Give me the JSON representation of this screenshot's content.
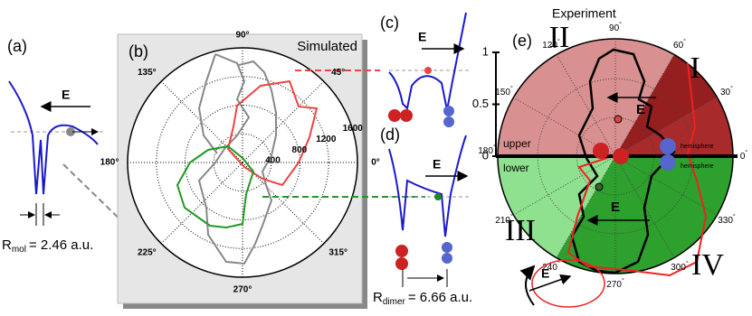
{
  "panel_a": {
    "label": "(a)",
    "field": "E",
    "r_symbol": "R",
    "r_subscript": "mol",
    "r_value": "= 2.46 a.u."
  },
  "panel_b": {
    "label": "(b)",
    "title": "Simulated",
    "angles": [
      "90°",
      "45°",
      "0°",
      "315°",
      "270°",
      "225°",
      "180°",
      "135°"
    ],
    "radii": [
      "400",
      "800",
      "1200",
      "1600"
    ]
  },
  "panel_c": {
    "label": "(c)",
    "field": "E"
  },
  "panel_d": {
    "label": "(d)",
    "field": "E",
    "r_symbol": "R",
    "r_subscript": "dimer",
    "r_value": "= 6.66 a.u."
  },
  "panel_e": {
    "label": "(e)",
    "title": "Experiment",
    "quadrants": [
      "I",
      "II",
      "III",
      "IV"
    ],
    "angles": [
      "0",
      "30",
      "60",
      "90",
      "120",
      "150",
      "180",
      "210",
      "240",
      "270",
      "300",
      "330"
    ],
    "degree": "°",
    "scale": [
      "1",
      "0.5",
      "0"
    ],
    "upper": "upper",
    "lower": "lower",
    "hemisphere": [
      "hemisphere",
      "hemisphere"
    ],
    "fields": [
      "E",
      "E"
    ],
    "ellipse_field": "E"
  }
}
